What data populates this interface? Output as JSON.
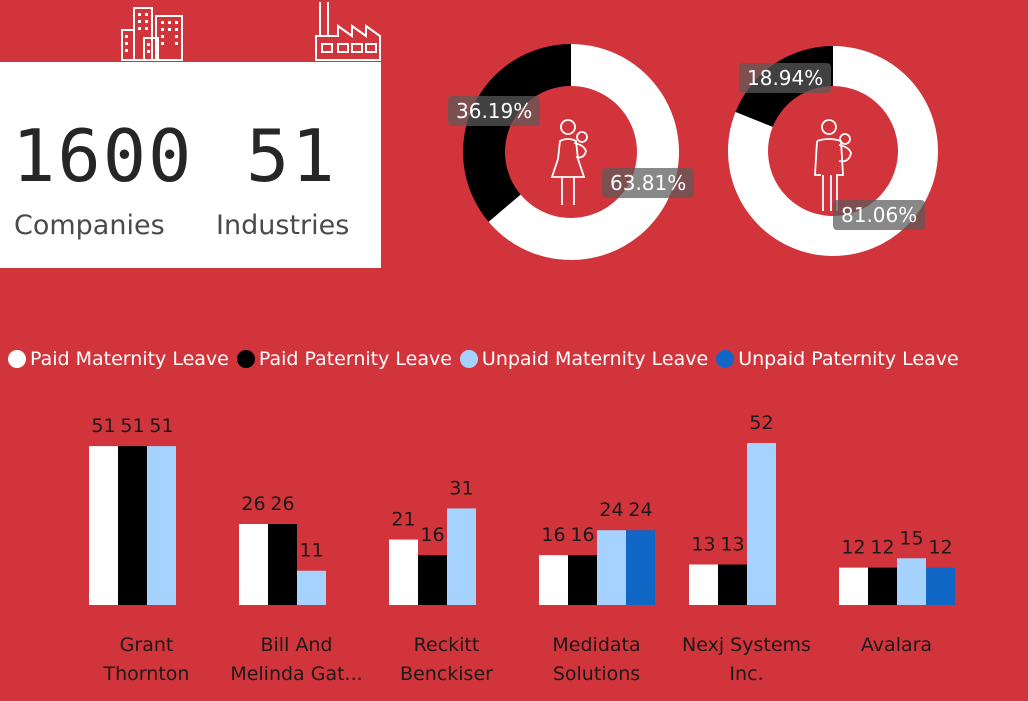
{
  "kpis": {
    "companies_value": "1600",
    "companies_label": "Companies",
    "industries_value": "51",
    "industries_label": "Industries"
  },
  "icons": {
    "companies": "buildings-icon",
    "industries": "factory-icon",
    "mother": "mother-child-icon",
    "father": "father-child-icon"
  },
  "donuts": [
    {
      "name": "maternity",
      "slices": [
        {
          "label": "36.19%",
          "value": 36.19,
          "color": "#000000"
        },
        {
          "label": "63.81%",
          "value": 63.81,
          "color": "#ffffff"
        }
      ]
    },
    {
      "name": "paternity",
      "slices": [
        {
          "label": "18.94%",
          "value": 18.94,
          "color": "#000000"
        },
        {
          "label": "81.06%",
          "value": 81.06,
          "color": "#ffffff"
        }
      ]
    }
  ],
  "colors": {
    "background": "#d2343c",
    "paid_maternity": "#ffffff",
    "paid_paternity": "#000000",
    "unpaid_maternity": "#a6d2ff",
    "unpaid_paternity": "#1167c5"
  },
  "chart_data": {
    "type": "bar",
    "categories": [
      "Grant Thornton",
      "Bill And Melinda Gat...",
      "Reckitt Benckiser",
      "Medidata Solutions",
      "Nexj Systems Inc.",
      "Avalara"
    ],
    "category_lines": [
      [
        "Grant",
        "Thornton"
      ],
      [
        "Bill And",
        "Melinda Gat..."
      ],
      [
        "Reckitt",
        "Benckiser"
      ],
      [
        "Medidata",
        "Solutions"
      ],
      [
        "Nexj Systems",
        "Inc."
      ],
      [
        "Avalara",
        ""
      ]
    ],
    "series": [
      {
        "name": "Paid Maternity Leave",
        "color": "#ffffff",
        "values": [
          51,
          26,
          21,
          16,
          13,
          12
        ]
      },
      {
        "name": "Paid Paternity Leave",
        "color": "#000000",
        "values": [
          51,
          26,
          16,
          16,
          13,
          12
        ]
      },
      {
        "name": "Unpaid Maternity Leave",
        "color": "#a6d2ff",
        "values": [
          51,
          11,
          31,
          24,
          52,
          15
        ]
      },
      {
        "name": "Unpaid Paternity Leave",
        "color": "#1167c5",
        "values": [
          null,
          null,
          null,
          24,
          null,
          12
        ]
      }
    ],
    "ylim": [
      0,
      52
    ],
    "legend": "top-left",
    "grid": false
  }
}
